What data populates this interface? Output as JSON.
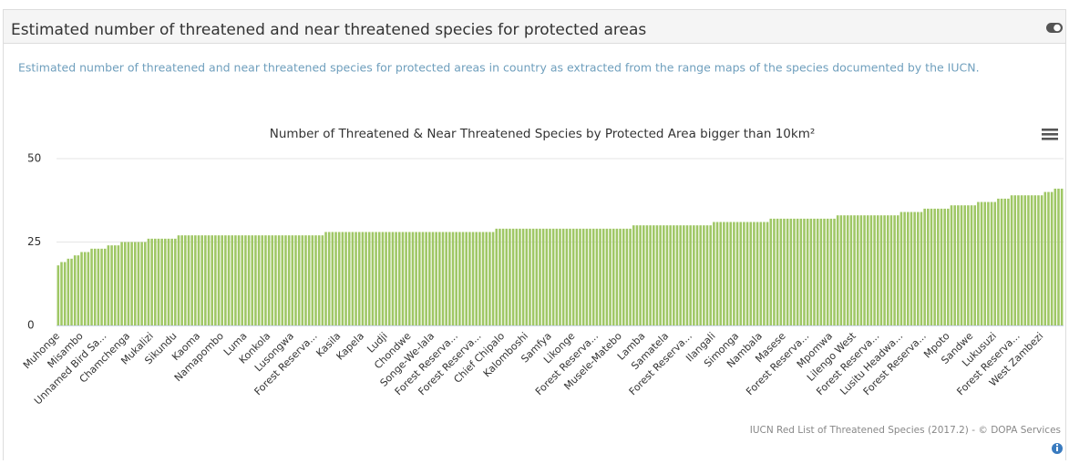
{
  "panel": {
    "title": "Estimated number of threatened and near threatened species for protected areas",
    "description": "Estimated number of threatened and near threatened species for protected areas in country as extracted from the range maps of the species documented by the IUCN."
  },
  "chart_data": {
    "type": "bar",
    "title": "Number of Threatened & Near Threatened Species by Protected Area bigger than 10km²",
    "credits": "IUCN Red List of Threatened Species (2017.2) - © DOPA Services",
    "color": "#9fc765",
    "ylim": [
      0,
      50
    ],
    "yticks": [
      0,
      25,
      50
    ],
    "grid": true,
    "categories": [
      "Muhonge",
      null,
      null,
      null,
      null,
      null,
      null,
      "Misambo",
      null,
      null,
      null,
      null,
      null,
      null,
      "Unnamed Bird Sa...",
      null,
      null,
      null,
      null,
      null,
      null,
      "Chamchenga",
      null,
      null,
      null,
      null,
      null,
      null,
      "Mukalizi",
      null,
      null,
      null,
      null,
      null,
      null,
      "Sikundu",
      null,
      null,
      null,
      null,
      null,
      null,
      "Kaoma",
      null,
      null,
      null,
      null,
      null,
      null,
      "Namapombo",
      null,
      null,
      null,
      null,
      null,
      null,
      "Luma",
      null,
      null,
      null,
      null,
      null,
      null,
      "Konkola",
      null,
      null,
      null,
      null,
      null,
      null,
      "Lusongwa",
      null,
      null,
      null,
      null,
      null,
      null,
      "Forest Reserva...",
      null,
      null,
      null,
      null,
      null,
      null,
      "Kasila",
      null,
      null,
      null,
      null,
      null,
      null,
      "Kapela",
      null,
      null,
      null,
      null,
      null,
      null,
      "Ludji",
      null,
      null,
      null,
      null,
      null,
      null,
      "Chondwe",
      null,
      null,
      null,
      null,
      null,
      null,
      "Songe-We-lala",
      null,
      null,
      null,
      null,
      null,
      null,
      "Forest Reserva...",
      null,
      null,
      null,
      null,
      null,
      null,
      "Forest Reserva...",
      null,
      null,
      null,
      null,
      null,
      null,
      "Chief Chipalo",
      null,
      null,
      null,
      null,
      null,
      null,
      "Kalomboshi",
      null,
      null,
      null,
      null,
      null,
      null,
      "Samfya",
      null,
      null,
      null,
      null,
      null,
      null,
      "Likonge",
      null,
      null,
      null,
      null,
      null,
      null,
      "Forest Reserva...",
      null,
      null,
      null,
      null,
      null,
      null,
      "Musele-Matebo",
      null,
      null,
      null,
      null,
      null,
      null,
      "Lamba",
      null,
      null,
      null,
      null,
      null,
      null,
      "Samatela",
      null,
      null,
      null,
      null,
      null,
      null,
      "Forest Reserva...",
      null,
      null,
      null,
      null,
      null,
      null,
      "Ilangali",
      null,
      null,
      null,
      null,
      null,
      null,
      "Simonga",
      null,
      null,
      null,
      null,
      null,
      null,
      "Nambala",
      null,
      null,
      null,
      null,
      null,
      null,
      "Masese",
      null,
      null,
      null,
      null,
      null,
      null,
      "Forest Reserva...",
      null,
      null,
      null,
      null,
      null,
      null,
      "Mpomwa",
      null,
      null,
      null,
      null,
      null,
      null,
      "Lilengo West",
      null,
      null,
      null,
      null,
      null,
      null,
      "Forest Reserva...",
      null,
      null,
      null,
      null,
      null,
      null,
      "Lusitu Headwa...",
      null,
      null,
      null,
      null,
      null,
      null,
      "Forest Reserva...",
      null,
      null,
      null,
      null,
      null,
      null,
      "Mpoto",
      null,
      null,
      null,
      null,
      null,
      null,
      "Sandwe",
      null,
      null,
      null,
      null,
      null,
      null,
      "Lukusuzi",
      null,
      null,
      null,
      null,
      null,
      null,
      "Forest Reserva...",
      null,
      null,
      null,
      null,
      null,
      null,
      "West Zambezi",
      null,
      null,
      null,
      null,
      null,
      null
    ],
    "values": [
      18,
      19,
      19,
      20,
      20,
      21,
      21,
      22,
      22,
      22,
      23,
      23,
      23,
      23,
      23,
      24,
      24,
      24,
      24,
      25,
      25,
      25,
      25,
      25,
      25,
      25,
      25,
      26,
      26,
      26,
      26,
      26,
      26,
      26,
      26,
      26,
      27,
      27,
      27,
      27,
      27,
      27,
      27,
      27,
      27,
      27,
      27,
      27,
      27,
      27,
      27,
      27,
      27,
      27,
      27,
      27,
      27,
      27,
      27,
      27,
      27,
      27,
      27,
      27,
      27,
      27,
      27,
      27,
      27,
      27,
      27,
      27,
      27,
      27,
      27,
      27,
      27,
      27,
      27,
      27,
      28,
      28,
      28,
      28,
      28,
      28,
      28,
      28,
      28,
      28,
      28,
      28,
      28,
      28,
      28,
      28,
      28,
      28,
      28,
      28,
      28,
      28,
      28,
      28,
      28,
      28,
      28,
      28,
      28,
      28,
      28,
      28,
      28,
      28,
      28,
      28,
      28,
      28,
      28,
      28,
      28,
      28,
      28,
      28,
      28,
      28,
      28,
      28,
      28,
      28,
      28,
      29,
      29,
      29,
      29,
      29,
      29,
      29,
      29,
      29,
      29,
      29,
      29,
      29,
      29,
      29,
      29,
      29,
      29,
      29,
      29,
      29,
      29,
      29,
      29,
      29,
      29,
      29,
      29,
      29,
      29,
      29,
      29,
      29,
      29,
      29,
      29,
      29,
      29,
      29,
      29,
      29,
      30,
      30,
      30,
      30,
      30,
      30,
      30,
      30,
      30,
      30,
      30,
      30,
      30,
      30,
      30,
      30,
      30,
      30,
      30,
      30,
      30,
      30,
      30,
      30,
      31,
      31,
      31,
      31,
      31,
      31,
      31,
      31,
      31,
      31,
      31,
      31,
      31,
      31,
      31,
      31,
      31,
      32,
      32,
      32,
      32,
      32,
      32,
      32,
      32,
      32,
      32,
      32,
      32,
      32,
      32,
      32,
      32,
      32,
      32,
      32,
      32,
      33,
      33,
      33,
      33,
      33,
      33,
      33,
      33,
      33,
      33,
      33,
      33,
      33,
      33,
      33,
      33,
      33,
      33,
      33,
      34,
      34,
      34,
      34,
      34,
      34,
      34,
      35,
      35,
      35,
      35,
      35,
      35,
      35,
      35,
      36,
      36,
      36,
      36,
      36,
      36,
      36,
      36,
      37,
      37,
      37,
      37,
      37,
      37,
      38,
      38,
      38,
      38,
      39,
      39,
      39,
      39,
      39,
      39,
      39,
      39,
      39,
      39,
      40,
      40,
      40,
      41,
      41,
      41
    ]
  }
}
